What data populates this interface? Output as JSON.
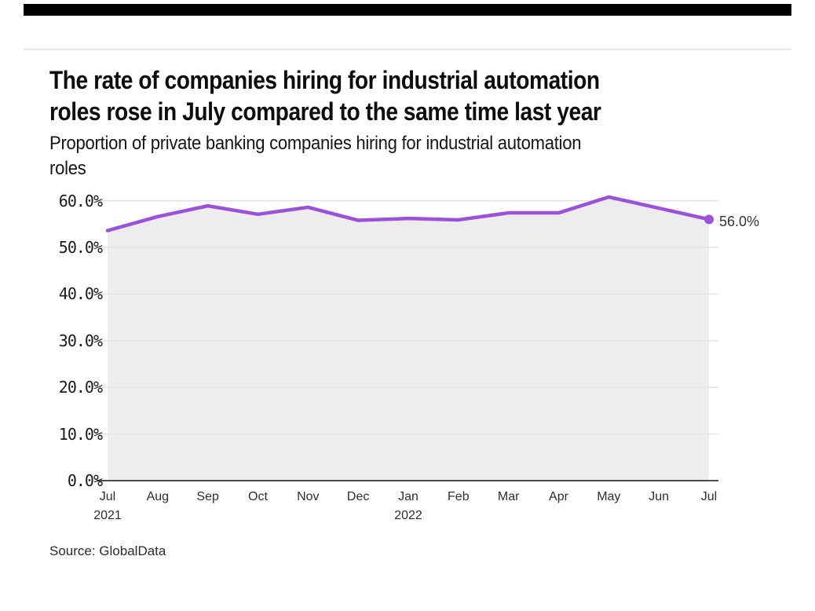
{
  "header": {
    "title_lines": [
      "The rate of companies hiring for industrial automation",
      "roles rose in July compared to the same time last year"
    ],
    "subtitle_lines": [
      "Proportion of private banking companies hiring for industrial automation",
      "roles"
    ]
  },
  "footer": {
    "source": "Source: GlobalData"
  },
  "colors": {
    "line": "#9b51d9",
    "area": "#ededed",
    "grid": "#e3e3e3",
    "axis": "#4d4d4d",
    "top_bar": "#000000"
  },
  "chart_data": {
    "type": "area",
    "title": "The rate of companies hiring for industrial automation roles rose in July compared to the same time last year",
    "subtitle": "Proportion of private banking companies hiring for industrial automation roles",
    "categories": [
      {
        "label": "Jul",
        "year": "2021"
      },
      {
        "label": "Aug"
      },
      {
        "label": "Sep"
      },
      {
        "label": "Oct"
      },
      {
        "label": "Nov"
      },
      {
        "label": "Dec"
      },
      {
        "label": "Jan",
        "year": "2022"
      },
      {
        "label": "Feb"
      },
      {
        "label": "Mar"
      },
      {
        "label": "Apr"
      },
      {
        "label": "May"
      },
      {
        "label": "Jun"
      },
      {
        "label": "Jul"
      }
    ],
    "values": [
      53.6,
      56.6,
      58.9,
      57.1,
      58.6,
      55.8,
      56.2,
      55.9,
      57.4,
      57.4,
      60.8,
      58.4,
      56.0
    ],
    "end_label": "56.0%",
    "ylim": [
      0,
      60
    ],
    "ytick_step": 10,
    "ytick_labels": [
      "0.0%",
      "10.0%",
      "20.0%",
      "30.0%",
      "40.0%",
      "50.0%",
      "60.0%"
    ],
    "grid": true,
    "legend": false,
    "xlabel": "",
    "ylabel": "",
    "source": "Source: GlobalData"
  }
}
